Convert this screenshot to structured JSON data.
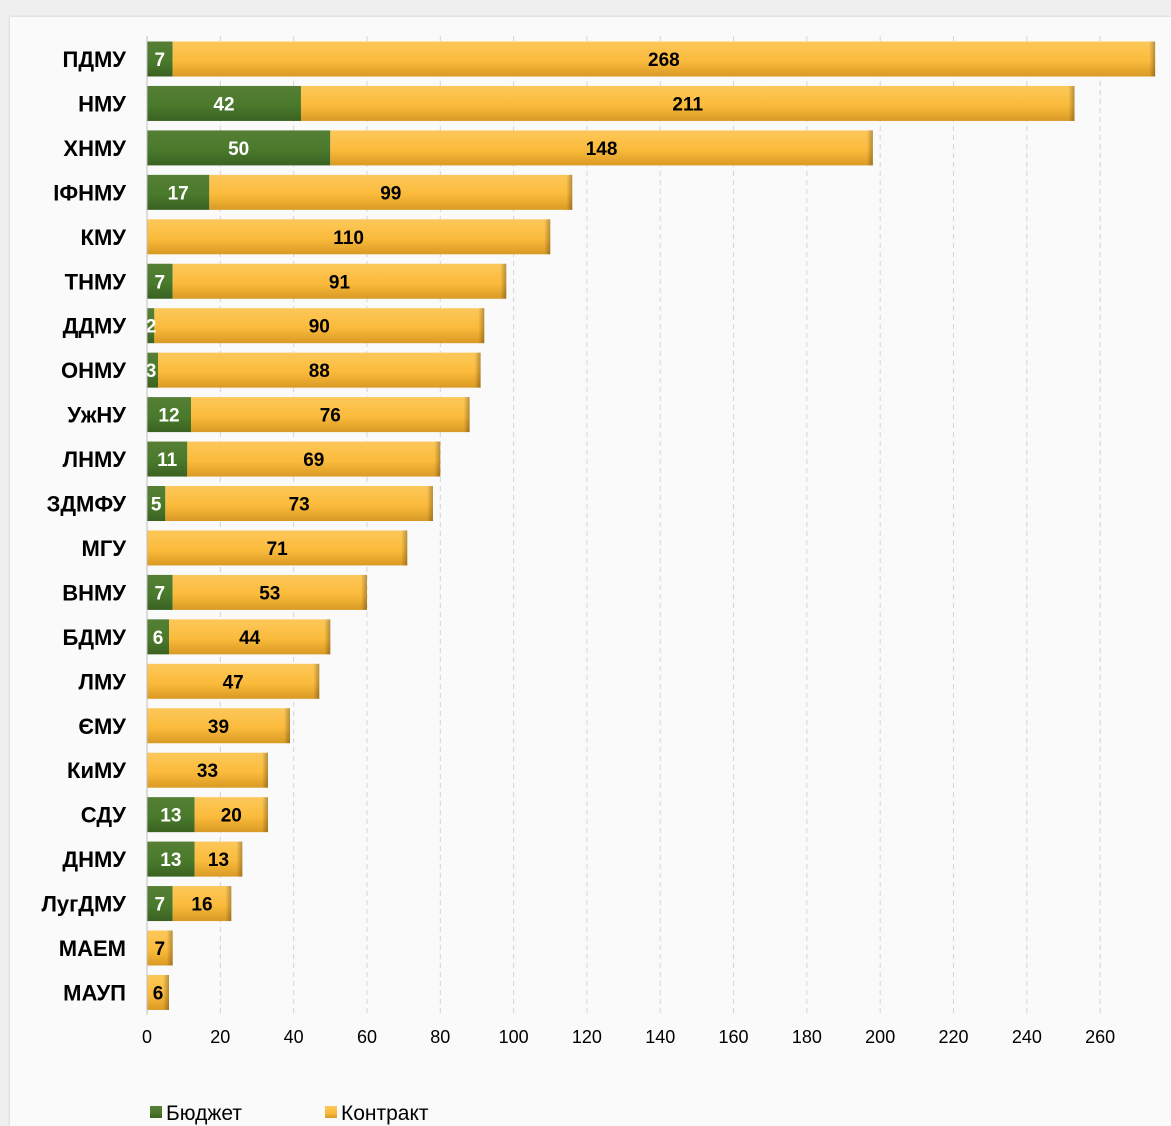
{
  "chart_data": {
    "type": "bar",
    "orientation": "horizontal",
    "stacked": true,
    "categories": [
      "ПДМУ",
      "НМУ",
      "ХНМУ",
      "ІФНМУ",
      "КМУ",
      "ТНМУ",
      "ДДМУ",
      "ОНМУ",
      "УжНУ",
      "ЛНМУ",
      "ЗДМФУ",
      "МГУ",
      "ВНМУ",
      "БДМУ",
      "ЛМУ",
      "ЄМУ",
      "КиМУ",
      "СДУ",
      "ДНМУ",
      "ЛугДМУ",
      "МАЕМ",
      "МАУП"
    ],
    "series": [
      {
        "name": "Бюджет",
        "color": "#4a7a2c",
        "values": [
          7,
          42,
          50,
          17,
          0,
          7,
          2,
          3,
          12,
          11,
          5,
          0,
          7,
          6,
          0,
          0,
          0,
          13,
          13,
          7,
          0,
          0
        ]
      },
      {
        "name": "Контракт",
        "color": "#fbbd40",
        "values": [
          268,
          211,
          148,
          99,
          110,
          91,
          90,
          88,
          76,
          69,
          73,
          71,
          53,
          44,
          47,
          39,
          33,
          20,
          13,
          16,
          7,
          6
        ]
      }
    ],
    "xlim": [
      0,
      275
    ],
    "xticks": [
      0,
      20,
      40,
      60,
      80,
      100,
      120,
      140,
      160,
      180,
      200,
      220,
      240,
      260
    ],
    "grid": "vertical-dashed",
    "legend_position": "bottom-left",
    "title": "",
    "xlabel": "",
    "ylabel": ""
  }
}
